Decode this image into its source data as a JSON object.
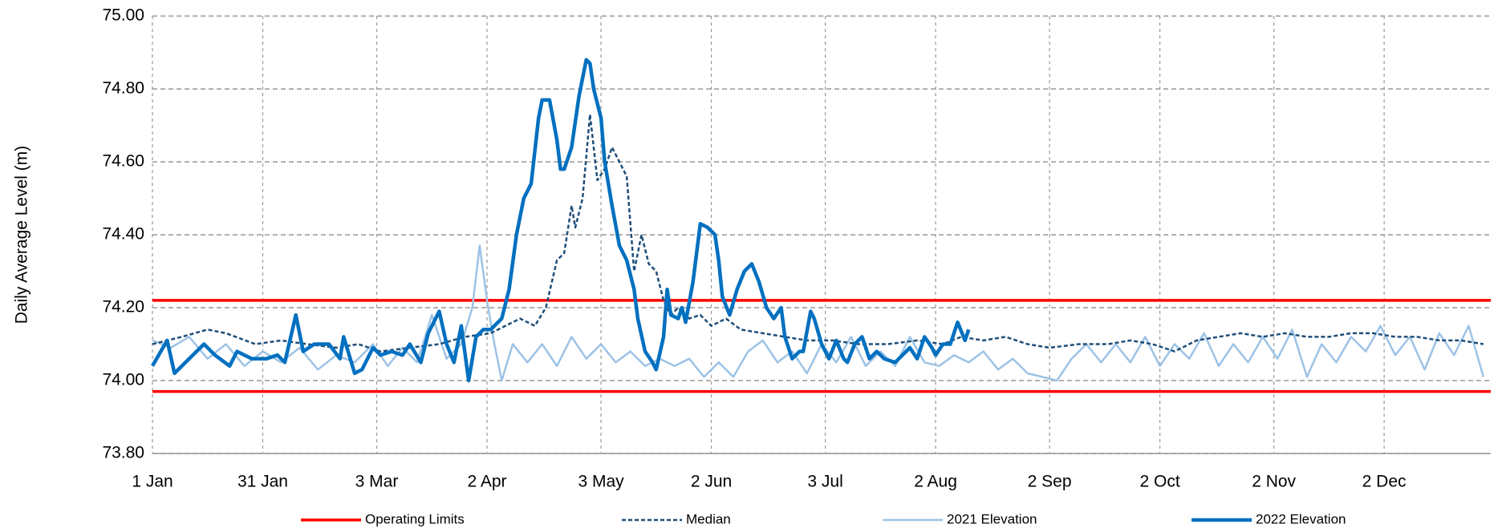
{
  "chart_data": {
    "type": "line",
    "y_label": "Daily Average Level (m)",
    "xlim": [
      0,
      364
    ],
    "ylim": [
      73.8,
      75
    ],
    "xticks": [
      {
        "value": 0,
        "label": "1 Jan"
      },
      {
        "value": 30,
        "label": "31 Jan"
      },
      {
        "value": 61,
        "label": "3 Mar"
      },
      {
        "value": 91,
        "label": "2 Apr"
      },
      {
        "value": 122,
        "label": "3 May"
      },
      {
        "value": 152,
        "label": "2 Jun"
      },
      {
        "value": 183,
        "label": "3 Jul"
      },
      {
        "value": 213,
        "label": "2 Aug"
      },
      {
        "value": 244,
        "label": "2 Sep"
      },
      {
        "value": 274,
        "label": "2 Oct"
      },
      {
        "value": 305,
        "label": "2 Nov"
      },
      {
        "value": 335,
        "label": "2 Dec"
      }
    ],
    "yticks": [
      {
        "value": 73.8,
        "label": "73.80"
      },
      {
        "value": 74,
        "label": "74.00"
      },
      {
        "value": 74.2,
        "label": "74.20"
      },
      {
        "value": 74.4,
        "label": "74.40"
      },
      {
        "value": 74.6,
        "label": "74.60"
      },
      {
        "value": 74.8,
        "label": "74.80"
      },
      {
        "value": 75,
        "label": "75.00"
      }
    ],
    "grid": true,
    "legend": "bottom",
    "series": [
      {
        "name": "Operating Limits",
        "color": "#ff0000",
        "limits": [
          74.22,
          73.97
        ]
      },
      {
        "name": "Median",
        "color": "#1f4e79",
        "dash": true,
        "x": [
          0,
          8,
          15,
          20,
          28,
          35,
          42,
          50,
          56,
          62,
          70,
          78,
          85,
          92,
          96,
          100,
          104,
          107,
          110,
          112,
          114,
          115,
          117,
          119,
          121,
          123,
          125,
          127,
          129,
          131,
          133,
          135,
          137,
          139,
          141,
          143,
          146,
          149,
          152,
          156,
          160,
          166,
          172,
          178,
          185,
          192,
          200,
          208,
          215,
          220,
          226,
          232,
          238,
          244,
          252,
          260,
          266,
          272,
          278,
          284,
          290,
          296,
          302,
          308,
          314,
          320,
          326,
          332,
          338,
          344,
          350,
          356,
          362
        ],
        "values": [
          74.1,
          74.12,
          74.14,
          74.13,
          74.1,
          74.11,
          74.1,
          74.09,
          74.1,
          74.08,
          74.09,
          74.1,
          74.12,
          74.13,
          74.15,
          74.17,
          74.15,
          74.2,
          74.33,
          74.35,
          74.48,
          74.42,
          74.5,
          74.73,
          74.55,
          74.58,
          74.64,
          74.6,
          74.56,
          74.3,
          74.4,
          74.32,
          74.3,
          74.22,
          74.18,
          74.2,
          74.17,
          74.18,
          74.15,
          74.17,
          74.14,
          74.13,
          74.12,
          74.11,
          74.11,
          74.1,
          74.1,
          74.11,
          74.1,
          74.12,
          74.11,
          74.12,
          74.1,
          74.09,
          74.1,
          74.1,
          74.11,
          74.1,
          74.08,
          74.11,
          74.12,
          74.13,
          74.12,
          74.13,
          74.12,
          74.12,
          74.13,
          74.13,
          74.12,
          74.12,
          74.11,
          74.11,
          74.1
        ]
      },
      {
        "name": "2021 Elevation",
        "color": "#9dc3e6",
        "x": [
          0,
          5,
          10,
          15,
          20,
          25,
          30,
          35,
          40,
          45,
          50,
          55,
          60,
          64,
          68,
          72,
          76,
          80,
          84,
          87,
          89,
          91,
          93,
          95,
          98,
          102,
          106,
          110,
          114,
          118,
          122,
          126,
          130,
          134,
          138,
          142,
          146,
          150,
          154,
          158,
          162,
          166,
          170,
          174,
          178,
          182,
          186,
          190,
          194,
          198,
          202,
          206,
          210,
          214,
          218,
          222,
          226,
          230,
          234,
          238,
          242,
          246,
          250,
          254,
          258,
          262,
          266,
          270,
          274,
          278,
          282,
          286,
          290,
          294,
          298,
          302,
          306,
          310,
          314,
          318,
          322,
          326,
          330,
          334,
          338,
          342,
          346,
          350,
          354,
          358,
          362
        ],
        "values": [
          74.11,
          74.09,
          74.12,
          74.06,
          74.1,
          74.04,
          74.08,
          74.05,
          74.09,
          74.03,
          74.07,
          74.05,
          74.1,
          74.04,
          74.09,
          74.05,
          74.18,
          74.06,
          74.1,
          74.2,
          74.37,
          74.22,
          74.1,
          74.0,
          74.1,
          74.05,
          74.1,
          74.04,
          74.12,
          74.06,
          74.1,
          74.05,
          74.08,
          74.04,
          74.06,
          74.04,
          74.06,
          74.01,
          74.05,
          74.01,
          74.08,
          74.11,
          74.05,
          74.08,
          74.02,
          74.1,
          74.05,
          74.12,
          74.04,
          74.08,
          74.04,
          74.12,
          74.05,
          74.04,
          74.07,
          74.05,
          74.08,
          74.03,
          74.06,
          74.02,
          74.01,
          74.0,
          74.06,
          74.1,
          74.05,
          74.1,
          74.05,
          74.12,
          74.04,
          74.1,
          74.06,
          74.13,
          74.04,
          74.1,
          74.05,
          74.12,
          74.06,
          74.14,
          74.01,
          74.1,
          74.05,
          74.12,
          74.08,
          74.15,
          74.07,
          74.12,
          74.03,
          74.13,
          74.07,
          74.15,
          74.01
        ]
      },
      {
        "name": "2022 Elevation",
        "color": "#0070c0",
        "thick": true,
        "x": [
          0,
          4,
          6,
          10,
          14,
          17,
          21,
          23,
          27,
          31,
          34,
          36,
          39,
          41,
          44,
          48,
          51,
          52,
          55,
          57,
          60,
          62,
          65,
          68,
          70,
          73,
          75,
          78,
          80,
          82,
          84,
          86,
          88,
          90,
          92,
          95,
          97,
          99,
          101,
          103,
          105,
          106,
          108,
          110,
          111,
          112,
          114,
          116,
          118,
          119,
          120,
          122,
          123,
          125,
          127,
          129,
          131,
          132,
          134,
          136,
          137,
          139,
          140,
          141,
          143,
          144,
          145,
          147,
          149,
          151,
          153,
          154,
          155,
          157,
          159,
          161,
          163,
          165,
          167,
          169,
          171,
          172,
          174,
          176,
          177,
          179,
          180,
          182,
          184,
          186,
          188,
          189,
          191,
          193,
          195,
          197,
          199,
          202,
          204,
          206,
          208,
          210,
          212,
          213,
          215,
          217,
          219,
          221,
          222
        ],
        "values": [
          74.04,
          74.11,
          74.02,
          74.06,
          74.1,
          74.07,
          74.04,
          74.08,
          74.06,
          74.06,
          74.07,
          74.05,
          74.18,
          74.08,
          74.1,
          74.1,
          74.06,
          74.12,
          74.02,
          74.03,
          74.09,
          74.07,
          74.08,
          74.07,
          74.1,
          74.05,
          74.13,
          74.19,
          74.1,
          74.05,
          74.15,
          74.0,
          74.12,
          74.14,
          74.14,
          74.17,
          74.25,
          74.4,
          74.5,
          74.54,
          74.72,
          74.77,
          74.77,
          74.66,
          74.58,
          74.58,
          74.64,
          74.78,
          74.88,
          74.87,
          74.8,
          74.72,
          74.6,
          74.48,
          74.37,
          74.33,
          74.25,
          74.17,
          74.08,
          74.05,
          74.03,
          74.12,
          74.25,
          74.18,
          74.17,
          74.2,
          74.16,
          74.27,
          74.43,
          74.42,
          74.4,
          74.33,
          74.23,
          74.18,
          74.25,
          74.3,
          74.32,
          74.27,
          74.2,
          74.17,
          74.2,
          74.12,
          74.06,
          74.08,
          74.08,
          74.19,
          74.17,
          74.1,
          74.06,
          74.11,
          74.06,
          74.05,
          74.1,
          74.12,
          74.06,
          74.08,
          74.06,
          74.05,
          74.07,
          74.09,
          74.06,
          74.12,
          74.09,
          74.07,
          74.1,
          74.1,
          74.16,
          74.11,
          74.14
        ]
      }
    ]
  }
}
